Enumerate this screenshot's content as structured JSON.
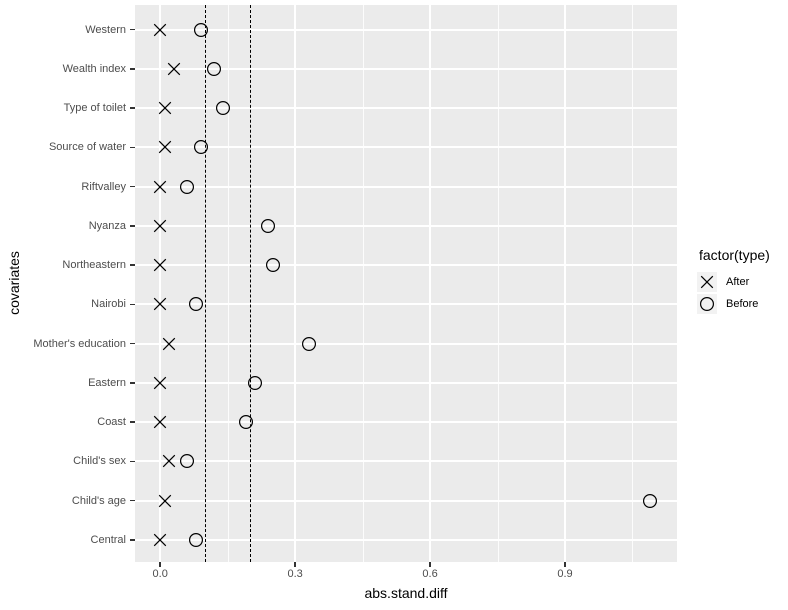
{
  "chart_data": {
    "type": "scatter",
    "title": "",
    "xlabel": "abs.stand.diff",
    "ylabel": "covariates",
    "xlim": [
      -0.056,
      1.149
    ],
    "grid": true,
    "x_ticks": [
      {
        "value": 0.0,
        "label": "0.0"
      },
      {
        "value": 0.3,
        "label": "0.3"
      },
      {
        "value": 0.6,
        "label": "0.6"
      },
      {
        "value": 0.9,
        "label": "0.9"
      }
    ],
    "x_minor_gridlines": [
      0.15,
      0.45,
      0.75,
      1.05
    ],
    "categories": [
      "Western",
      "Wealth index",
      "Type of toilet",
      "Source of water",
      "Riftvalley",
      "Nyanza",
      "Northeastern",
      "Nairobi",
      "Mother's education",
      "Eastern",
      "Coast",
      "Child's sex",
      "Child's age",
      "Central"
    ],
    "series": [
      {
        "name": "After",
        "marker": "x",
        "values": [
          0.0,
          0.03,
          0.01,
          0.01,
          0.0,
          0.0,
          0.0,
          0.0,
          0.02,
          0.0,
          0.0,
          0.02,
          0.01,
          0.0
        ]
      },
      {
        "name": "Before",
        "marker": "circle",
        "values": [
          0.09,
          0.12,
          0.14,
          0.09,
          0.06,
          0.24,
          0.25,
          0.08,
          0.33,
          0.21,
          0.19,
          0.06,
          1.09,
          0.08
        ]
      }
    ],
    "reference_lines": {
      "style": "dashed",
      "values": [
        0.1,
        0.2
      ]
    },
    "legend": {
      "title": "factor(type)",
      "position": "right",
      "entries": [
        {
          "label": "After",
          "marker": "x"
        },
        {
          "label": "Before",
          "marker": "circle"
        }
      ]
    },
    "colors": {
      "panel_background": "#EBEBEB",
      "grid": "#FFFFFF",
      "marker": "#000000",
      "reference_line": "#000000",
      "axis_text": "#4D4D4D",
      "axis_title": "#000000",
      "legend_key_background": "#F2F2F2"
    }
  }
}
